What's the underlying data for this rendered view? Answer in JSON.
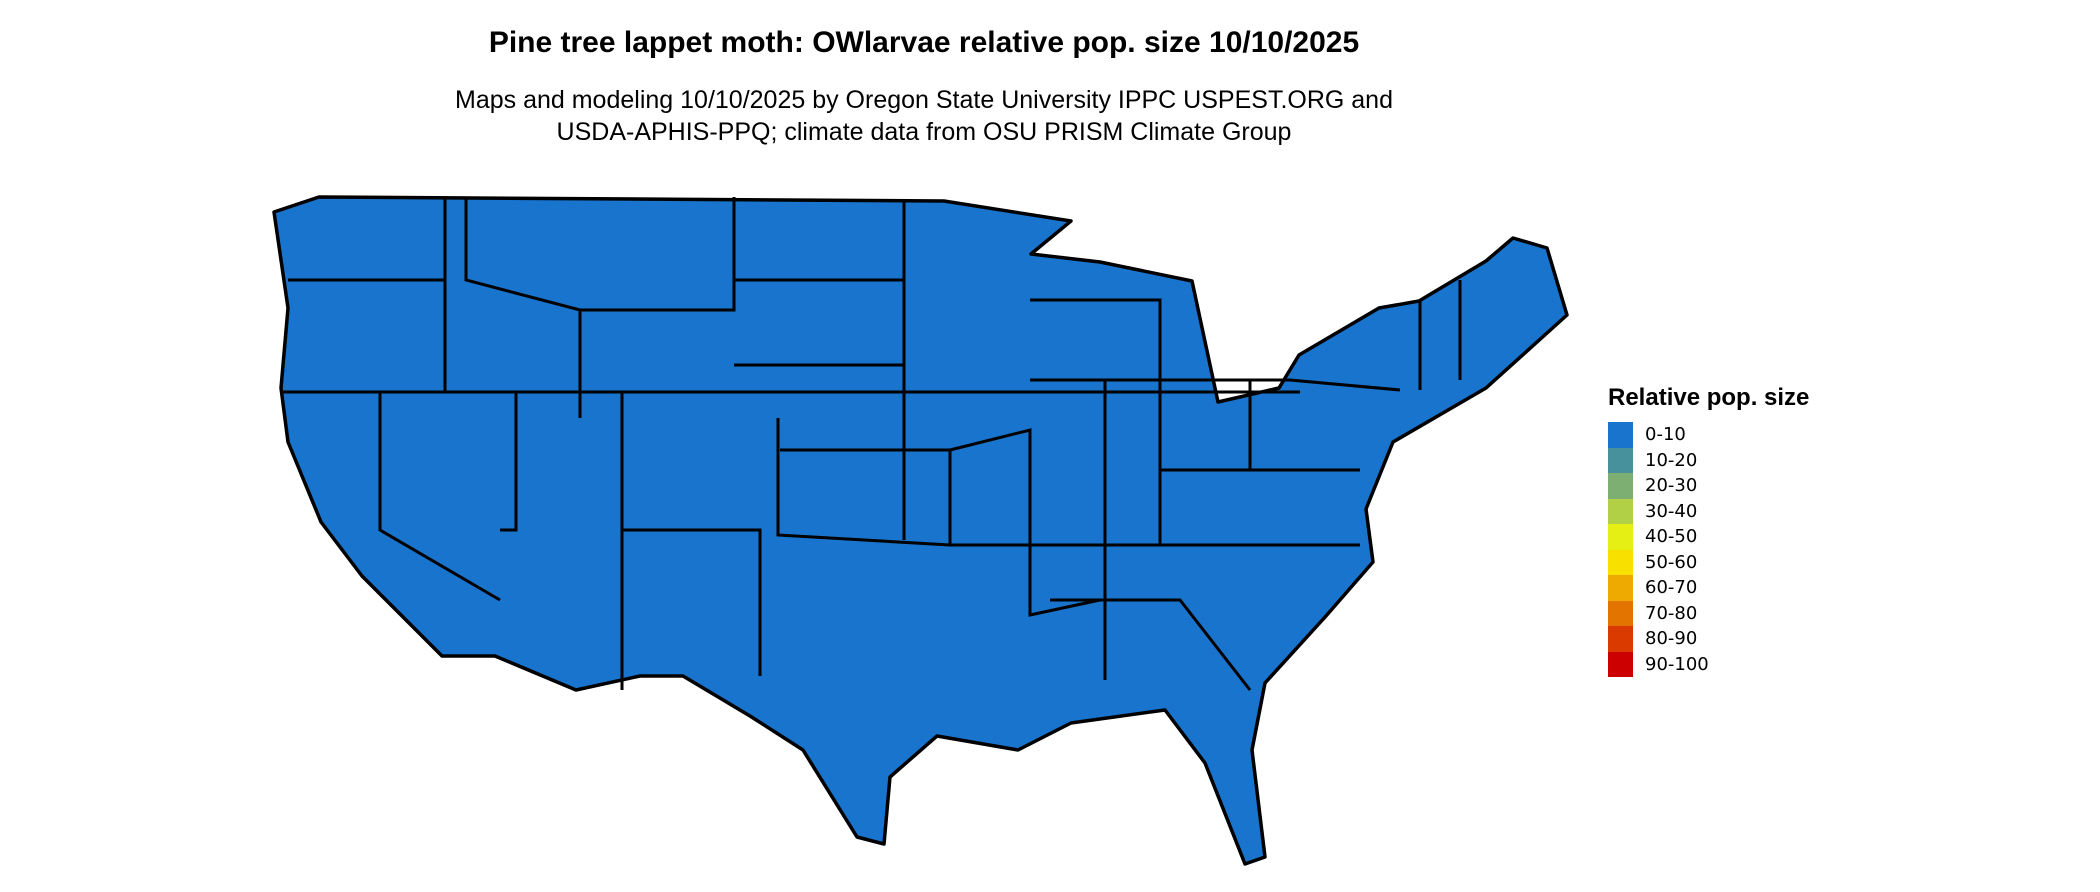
{
  "title": "Pine tree lappet moth: OWlarvae relative pop. size 10/10/2025",
  "subtitle_line1": "Maps and modeling 10/10/2025 by Oregon State University IPPC USPEST.ORG and",
  "subtitle_line2": "USDA-APHIS-PPQ; climate data from OSU PRISM Climate Group",
  "map": {
    "region": "Contiguous United States",
    "dominant_class": "0-10",
    "fill_color": "#1874CD",
    "border_color": "#000000"
  },
  "legend": {
    "title": "Relative pop. size",
    "items": [
      {
        "label": "0-10",
        "color": "#1874CD"
      },
      {
        "label": "10-20",
        "color": "#46919B"
      },
      {
        "label": "20-30",
        "color": "#7DAF73"
      },
      {
        "label": "30-40",
        "color": "#B2D046"
      },
      {
        "label": "40-50",
        "color": "#E6EF14"
      },
      {
        "label": "50-60",
        "color": "#F8E100"
      },
      {
        "label": "60-70",
        "color": "#EEAA00"
      },
      {
        "label": "70-80",
        "color": "#E37400"
      },
      {
        "label": "80-90",
        "color": "#DA3A00"
      },
      {
        "label": "90-100",
        "color": "#CD0000"
      }
    ]
  }
}
